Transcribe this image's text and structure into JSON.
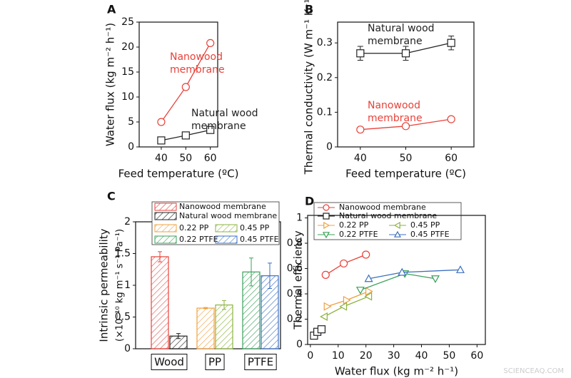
{
  "chart_data": [
    {
      "type": "line",
      "panel": "A",
      "xlabel": "Feed temperature (ºC)",
      "ylabel": "Water flux (kg m⁻² h⁻¹)",
      "x": [
        40,
        50,
        60
      ],
      "xlim": [
        31,
        63
      ],
      "xticks": [
        40,
        50,
        60
      ],
      "ylim": [
        0,
        25
      ],
      "yticks": [
        0,
        5,
        10,
        15,
        20,
        25
      ],
      "series": [
        {
          "label_lines": [
            "Nanowood",
            "membrane"
          ],
          "color": "#e8423a",
          "marker": "circle",
          "values": [
            5,
            12,
            20.8
          ]
        },
        {
          "label_lines": [
            "Natural wood",
            "membrane"
          ],
          "color": "#222222",
          "marker": "square",
          "values": [
            1.3,
            2.3,
            3.4
          ]
        }
      ]
    },
    {
      "type": "line",
      "panel": "B",
      "xlabel": "Feed temperature (ºC)",
      "ylabel": "Thermal conductivity (W m⁻¹ K⁻¹)",
      "x": [
        40,
        50,
        60
      ],
      "xlim": [
        35,
        65
      ],
      "xticks": [
        40,
        50,
        60
      ],
      "ylim": [
        0,
        0.36
      ],
      "yticks": [
        0.0,
        0.1,
        0.2,
        0.3
      ],
      "series": [
        {
          "label_lines": [
            "Natural wood",
            "membrane"
          ],
          "color": "#222222",
          "marker": "square",
          "values": [
            0.27,
            0.27,
            0.3
          ],
          "errors": [
            0.02,
            0.02,
            0.02
          ]
        },
        {
          "label_lines": [
            "Nanowood",
            "membrane"
          ],
          "color": "#e8423a",
          "marker": "circle",
          "values": [
            0.05,
            0.06,
            0.08
          ]
        }
      ]
    },
    {
      "type": "bar",
      "panel": "C",
      "ylabel": [
        "Intrinsic permeability",
        "(×10⁻¹⁰ kg m⁻¹ s⁻¹ Pa⁻¹)"
      ],
      "categories": [
        "Wood",
        "PP",
        "PTFE"
      ],
      "ylim": [
        0,
        2.0
      ],
      "yticks": [
        0.0,
        0.5,
        1.0,
        1.5,
        2.0
      ],
      "series": [
        {
          "name": "Nanowood membrane",
          "color": "#e8423a",
          "values": [
            1.45,
            null,
            null
          ],
          "errors": [
            0.08,
            null,
            null
          ]
        },
        {
          "name": "Natural wood membrane",
          "color": "#222222",
          "values": [
            0.2,
            null,
            null
          ],
          "errors": [
            0.04,
            null,
            null
          ]
        },
        {
          "name": "0.22 PP",
          "color": "#f0a040",
          "values": [
            null,
            0.64,
            null
          ],
          "errors": [
            null,
            0.01,
            null
          ]
        },
        {
          "name": "0.45 PP",
          "color": "#8cb33f",
          "values": [
            null,
            0.69,
            null
          ],
          "errors": [
            null,
            0.07,
            null
          ]
        },
        {
          "name": "0.22 PTFE",
          "color": "#3aa05a",
          "values": [
            null,
            null,
            1.21
          ],
          "errors": [
            null,
            null,
            0.22
          ]
        },
        {
          "name": "0.45 PTFE",
          "color": "#3b6fc0",
          "values": [
            null,
            null,
            1.15
          ],
          "errors": [
            null,
            null,
            0.2
          ]
        }
      ]
    },
    {
      "type": "scatter",
      "panel": "D",
      "xlabel": "Water flux (kg m⁻² h⁻¹)",
      "ylabel": "Thermal efficiency",
      "xlim": [
        -1,
        63
      ],
      "xticks": [
        0,
        10,
        20,
        30,
        40,
        50,
        60
      ],
      "ylim": [
        0,
        1.02
      ],
      "yticks": [
        0.0,
        0.2,
        0.4,
        0.6,
        0.8,
        1.0
      ],
      "series": [
        {
          "name": "Nanowood membrane",
          "color": "#e8423a",
          "marker": "circle",
          "x": [
            5.5,
            12,
            20
          ],
          "values": [
            0.55,
            0.64,
            0.71
          ]
        },
        {
          "name": "Natural wood membrane",
          "color": "#222222",
          "marker": "square",
          "x": [
            1.3,
            2.5,
            4
          ],
          "values": [
            0.07,
            0.1,
            0.12
          ]
        },
        {
          "name": "0.22 PP",
          "color": "#f0a040",
          "marker": "tri-right",
          "x": [
            6,
            13,
            21
          ],
          "values": [
            0.3,
            0.35,
            0.42
          ]
        },
        {
          "name": "0.45 PP",
          "color": "#8cb33f",
          "marker": "tri-left",
          "x": [
            5,
            12,
            21
          ],
          "values": [
            0.22,
            0.3,
            0.38
          ]
        },
        {
          "name": "0.22 PTFE",
          "color": "#3aa05a",
          "marker": "tri-down",
          "x": [
            18,
            34,
            45
          ],
          "values": [
            0.43,
            0.56,
            0.52
          ]
        },
        {
          "name": "0.45 PTFE",
          "color": "#3b6fc0",
          "marker": "tri-up",
          "x": [
            21,
            33,
            54
          ],
          "values": [
            0.52,
            0.57,
            0.59
          ]
        }
      ]
    }
  ],
  "watermark": "SCIENCEAQ.COM"
}
